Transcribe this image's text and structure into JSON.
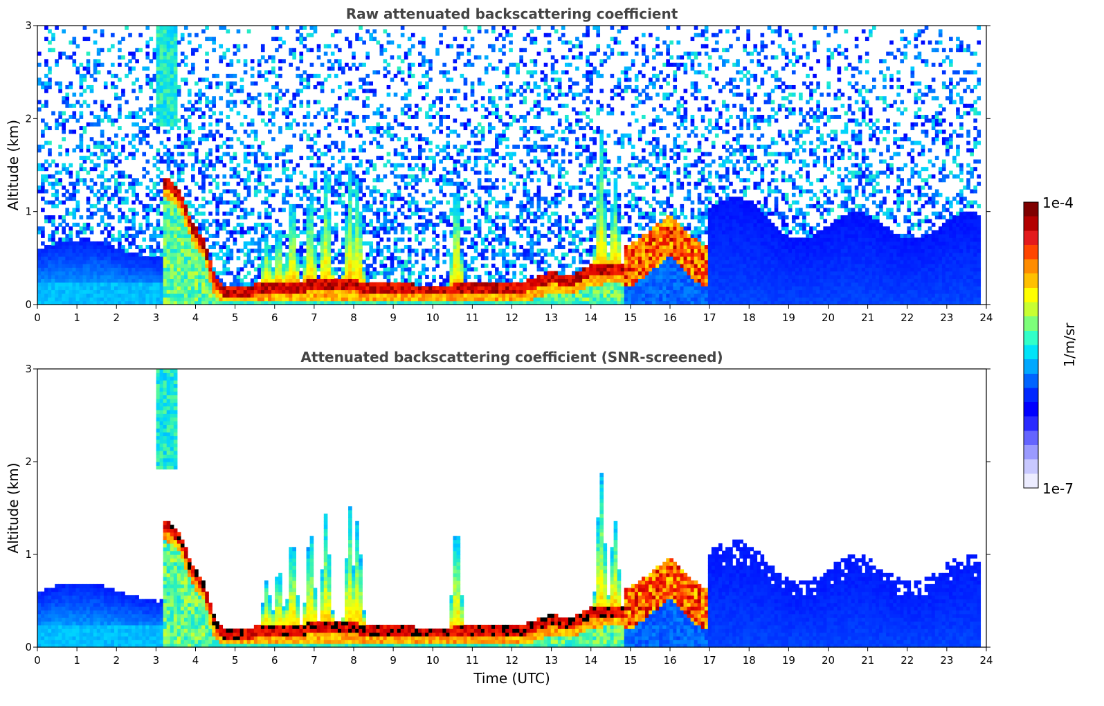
{
  "chart_data": [
    {
      "type": "heatmap",
      "title": "Raw attenuated backscattering coefficient",
      "xlabel": "",
      "ylabel": "Altitude (km)",
      "xlim": [
        0,
        24
      ],
      "ylim": [
        0,
        3
      ],
      "x_ticks": [
        "0",
        "1",
        "2",
        "3",
        "4",
        "5",
        "6",
        "7",
        "8",
        "9",
        "10",
        "11",
        "12",
        "13",
        "14",
        "15",
        "16",
        "17",
        "18",
        "19",
        "20",
        "21",
        "22",
        "23",
        "24"
      ],
      "y_ticks": [
        "0",
        "1",
        "2",
        "3"
      ],
      "color_scale": "log",
      "layer_top_km": [
        [
          3.25,
          1.38
        ],
        [
          3.6,
          1.25
        ],
        [
          3.9,
          0.9
        ],
        [
          4.2,
          0.72
        ],
        [
          4.5,
          0.3
        ],
        [
          4.8,
          0.18
        ],
        [
          5.5,
          0.22
        ],
        [
          6.5,
          0.25
        ],
        [
          7.5,
          0.28
        ],
        [
          8.5,
          0.25
        ],
        [
          9.5,
          0.22
        ],
        [
          10.5,
          0.22
        ],
        [
          11.5,
          0.23
        ],
        [
          12.3,
          0.25
        ],
        [
          13.0,
          0.35
        ],
        [
          13.5,
          0.32
        ],
        [
          14.0,
          0.42
        ],
        [
          14.5,
          0.45
        ]
      ],
      "residual_layer_km": [
        [
          15.0,
          0.5
        ],
        [
          15.5,
          0.65
        ],
        [
          16.0,
          0.82
        ],
        [
          16.5,
          0.6
        ],
        [
          16.9,
          0.48
        ]
      ],
      "screened": false
    },
    {
      "type": "heatmap",
      "title": "Attenuated backscattering coefficient (SNR-screened)",
      "xlabel": "Time (UTC)",
      "ylabel": "Altitude (km)",
      "xlim": [
        0,
        24
      ],
      "ylim": [
        0,
        3
      ],
      "x_ticks": [
        "0",
        "1",
        "2",
        "3",
        "4",
        "5",
        "6",
        "7",
        "8",
        "9",
        "10",
        "11",
        "12",
        "13",
        "14",
        "15",
        "16",
        "17",
        "18",
        "19",
        "20",
        "21",
        "22",
        "23",
        "24"
      ],
      "y_ticks": [
        "0",
        "1",
        "2",
        "3"
      ],
      "color_scale": "log",
      "layer_top_km": [
        [
          3.25,
          1.38
        ],
        [
          3.6,
          1.25
        ],
        [
          3.9,
          0.9
        ],
        [
          4.2,
          0.72
        ],
        [
          4.5,
          0.3
        ],
        [
          4.8,
          0.18
        ],
        [
          5.5,
          0.22
        ],
        [
          6.5,
          0.25
        ],
        [
          7.5,
          0.28
        ],
        [
          8.5,
          0.25
        ],
        [
          9.5,
          0.22
        ],
        [
          10.5,
          0.22
        ],
        [
          11.5,
          0.23
        ],
        [
          12.3,
          0.25
        ],
        [
          13.0,
          0.35
        ],
        [
          13.5,
          0.32
        ],
        [
          14.0,
          0.42
        ],
        [
          14.5,
          0.45
        ]
      ],
      "residual_layer_km": [
        [
          15.0,
          0.5
        ],
        [
          15.5,
          0.65
        ],
        [
          16.0,
          0.82
        ],
        [
          16.5,
          0.6
        ],
        [
          16.9,
          0.48
        ]
      ],
      "screened": true
    }
  ],
  "colorbar": {
    "max_label": "1e-4",
    "min_label": "1e-7",
    "unit_label": "1/m/sr",
    "colors": [
      "#7f0000",
      "#b30000",
      "#e31a1c",
      "#ff4500",
      "#ff8c00",
      "#ffc000",
      "#ffff00",
      "#c8ff32",
      "#7dff7a",
      "#32ffc8",
      "#00e4f8",
      "#00a8ff",
      "#0064ff",
      "#0028ff",
      "#0000ff",
      "#2a2aff",
      "#6464ff",
      "#9a9aff",
      "#c8c8ff",
      "#ececff"
    ]
  }
}
